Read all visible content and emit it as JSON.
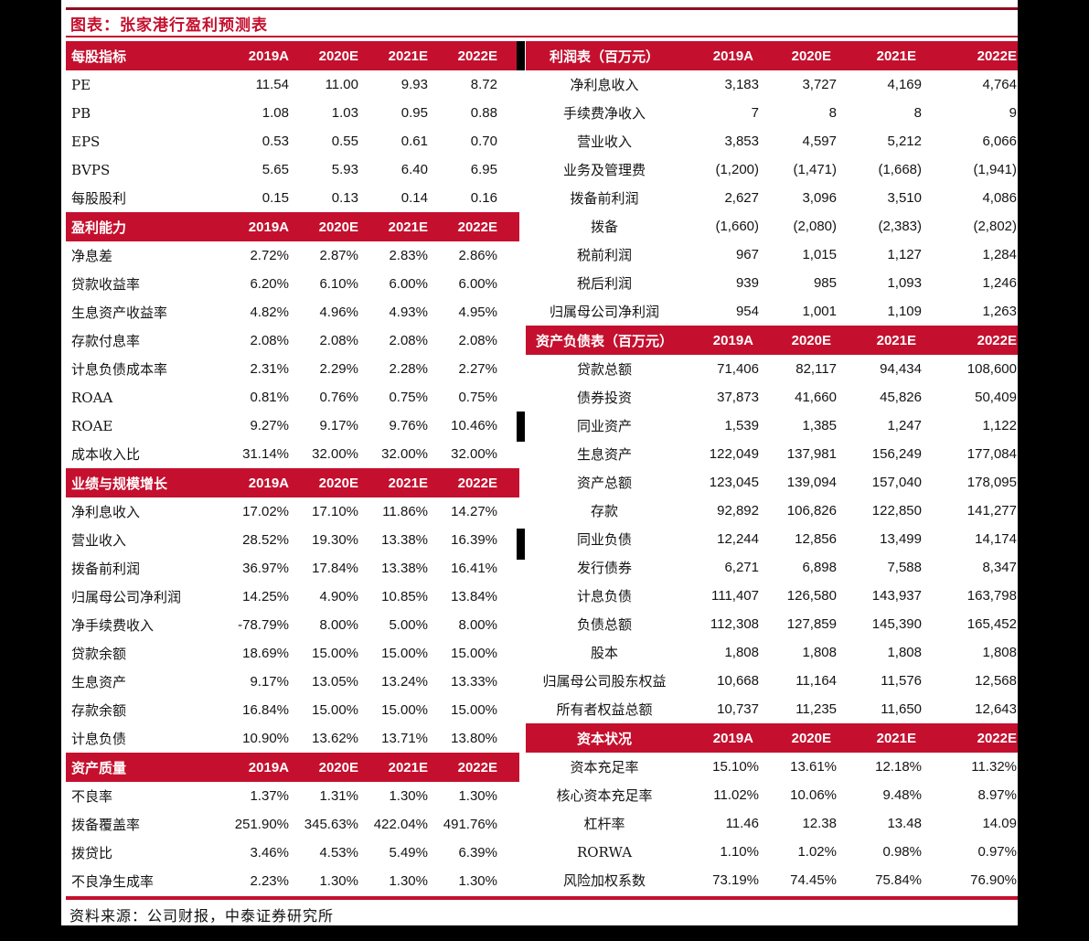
{
  "title": "图表：张家港行盈利预测表",
  "source": "资料来源：公司财报，中泰证券研究所",
  "columns": [
    "2019A",
    "2020E",
    "2021E",
    "2022E"
  ],
  "colors": {
    "accent": "#C4102E",
    "top_rule": "#8E0E20",
    "scan_border": "#000000"
  },
  "left_tables": [
    {
      "header": "每股指标",
      "rows": [
        {
          "label": "PE",
          "values": [
            "11.54",
            "11.00",
            "9.93",
            "8.72"
          ]
        },
        {
          "label": "PB",
          "values": [
            "1.08",
            "1.03",
            "0.95",
            "0.88"
          ]
        },
        {
          "label": "EPS",
          "values": [
            "0.53",
            "0.55",
            "0.61",
            "0.70"
          ]
        },
        {
          "label": "BVPS",
          "values": [
            "5.65",
            "5.93",
            "6.40",
            "6.95"
          ]
        },
        {
          "label": "每股股利",
          "values": [
            "0.15",
            "0.13",
            "0.14",
            "0.16"
          ]
        }
      ]
    },
    {
      "header": "盈利能力",
      "rows": [
        {
          "label": "净息差",
          "values": [
            "2.72%",
            "2.87%",
            "2.83%",
            "2.86%"
          ]
        },
        {
          "label": "贷款收益率",
          "values": [
            "6.20%",
            "6.10%",
            "6.00%",
            "6.00%"
          ]
        },
        {
          "label": "生息资产收益率",
          "values": [
            "4.82%",
            "4.96%",
            "4.93%",
            "4.95%"
          ]
        },
        {
          "label": "存款付息率",
          "values": [
            "2.08%",
            "2.08%",
            "2.08%",
            "2.08%"
          ]
        },
        {
          "label": "计息负债成本率",
          "values": [
            "2.31%",
            "2.29%",
            "2.28%",
            "2.27%"
          ]
        },
        {
          "label": "ROAA",
          "values": [
            "0.81%",
            "0.76%",
            "0.75%",
            "0.75%"
          ]
        },
        {
          "label": "ROAE",
          "values": [
            "9.27%",
            "9.17%",
            "9.76%",
            "10.46%"
          ]
        },
        {
          "label": "成本收入比",
          "values": [
            "31.14%",
            "32.00%",
            "32.00%",
            "32.00%"
          ]
        }
      ]
    },
    {
      "header": "业绩与规模增长",
      "rows": [
        {
          "label": "净利息收入",
          "values": [
            "17.02%",
            "17.10%",
            "11.86%",
            "14.27%"
          ]
        },
        {
          "label": "营业收入",
          "values": [
            "28.52%",
            "19.30%",
            "13.38%",
            "16.39%"
          ]
        },
        {
          "label": "拨备前利润",
          "values": [
            "36.97%",
            "17.84%",
            "13.38%",
            "16.41%"
          ]
        },
        {
          "label": "归属母公司净利润",
          "values": [
            "14.25%",
            "4.90%",
            "10.85%",
            "13.84%"
          ]
        },
        {
          "label": "净手续费收入",
          "values": [
            "-78.79%",
            "8.00%",
            "5.00%",
            "8.00%"
          ]
        },
        {
          "label": "贷款余额",
          "values": [
            "18.69%",
            "15.00%",
            "15.00%",
            "15.00%"
          ]
        },
        {
          "label": "生息资产",
          "values": [
            "9.17%",
            "13.05%",
            "13.24%",
            "13.33%"
          ]
        },
        {
          "label": "存款余额",
          "values": [
            "16.84%",
            "15.00%",
            "15.00%",
            "15.00%"
          ]
        },
        {
          "label": "计息负债",
          "values": [
            "10.90%",
            "13.62%",
            "13.71%",
            "13.80%"
          ]
        }
      ]
    },
    {
      "header": "资产质量",
      "rows": [
        {
          "label": "不良率",
          "values": [
            "1.37%",
            "1.31%",
            "1.30%",
            "1.30%"
          ]
        },
        {
          "label": "拨备覆盖率",
          "values": [
            "251.90%",
            "345.63%",
            "422.04%",
            "491.76%"
          ]
        },
        {
          "label": "拨贷比",
          "values": [
            "3.46%",
            "4.53%",
            "5.49%",
            "6.39%"
          ]
        },
        {
          "label": "不良净生成率",
          "values": [
            "2.23%",
            "1.30%",
            "1.30%",
            "1.30%"
          ]
        }
      ]
    }
  ],
  "right_tables": [
    {
      "header": "利润表（百万元）",
      "rows": [
        {
          "label": "净利息收入",
          "values": [
            "3,183",
            "3,727",
            "4,169",
            "4,764"
          ]
        },
        {
          "label": "手续费净收入",
          "values": [
            "7",
            "8",
            "8",
            "9"
          ]
        },
        {
          "label": "营业收入",
          "values": [
            "3,853",
            "4,597",
            "5,212",
            "6,066"
          ]
        },
        {
          "label": "业务及管理费",
          "values": [
            "(1,200)",
            "(1,471)",
            "(1,668)",
            "(1,941)"
          ]
        },
        {
          "label": "拨备前利润",
          "values": [
            "2,627",
            "3,096",
            "3,510",
            "4,086"
          ]
        },
        {
          "label": "拨备",
          "values": [
            "(1,660)",
            "(2,080)",
            "(2,383)",
            "(2,802)"
          ]
        },
        {
          "label": "税前利润",
          "values": [
            "967",
            "1,015",
            "1,127",
            "1,284"
          ]
        },
        {
          "label": "税后利润",
          "values": [
            "939",
            "985",
            "1,093",
            "1,246"
          ]
        },
        {
          "label": "归属母公司净利润",
          "values": [
            "954",
            "1,001",
            "1,109",
            "1,263"
          ]
        }
      ]
    },
    {
      "header": "资产负债表（百万元）",
      "rows": [
        {
          "label": "贷款总额",
          "values": [
            "71,406",
            "82,117",
            "94,434",
            "108,600"
          ]
        },
        {
          "label": "债券投资",
          "values": [
            "37,873",
            "41,660",
            "45,826",
            "50,409"
          ]
        },
        {
          "label": "同业资产",
          "values": [
            "1,539",
            "1,385",
            "1,247",
            "1,122"
          ]
        },
        {
          "label": "生息资产",
          "values": [
            "122,049",
            "137,981",
            "156,249",
            "177,084"
          ]
        },
        {
          "label": "资产总额",
          "values": [
            "123,045",
            "139,094",
            "157,040",
            "178,095"
          ]
        },
        {
          "label": "存款",
          "values": [
            "92,892",
            "106,826",
            "122,850",
            "141,277"
          ]
        },
        {
          "label": "同业负债",
          "values": [
            "12,244",
            "12,856",
            "13,499",
            "14,174"
          ]
        },
        {
          "label": "发行债券",
          "values": [
            "6,271",
            "6,898",
            "7,588",
            "8,347"
          ]
        },
        {
          "label": "计息负债",
          "values": [
            "111,407",
            "126,580",
            "143,937",
            "163,798"
          ]
        },
        {
          "label": "负债总额",
          "values": [
            "112,308",
            "127,859",
            "145,390",
            "165,452"
          ]
        },
        {
          "label": "股本",
          "values": [
            "1,808",
            "1,808",
            "1,808",
            "1,808"
          ]
        },
        {
          "label": "归属母公司股东权益",
          "values": [
            "10,668",
            "11,164",
            "11,576",
            "12,568"
          ]
        },
        {
          "label": "所有者权益总额",
          "values": [
            "10,737",
            "11,235",
            "11,650",
            "12,643"
          ]
        }
      ]
    },
    {
      "header": "资本状况",
      "rows": [
        {
          "label": "资本充足率",
          "values": [
            "15.10%",
            "13.61%",
            "12.18%",
            "11.32%"
          ]
        },
        {
          "label": "核心资本充足率",
          "values": [
            "11.02%",
            "10.06%",
            "9.48%",
            "8.97%"
          ]
        },
        {
          "label": "杠杆率",
          "values": [
            "11.46",
            "12.38",
            "13.48",
            "14.09"
          ]
        },
        {
          "label": "RORWA",
          "values": [
            "1.10%",
            "1.02%",
            "0.98%",
            "0.97%"
          ]
        },
        {
          "label": "风险加权系数",
          "values": [
            "73.19%",
            "74.45%",
            "75.84%",
            "76.90%"
          ]
        }
      ]
    }
  ]
}
